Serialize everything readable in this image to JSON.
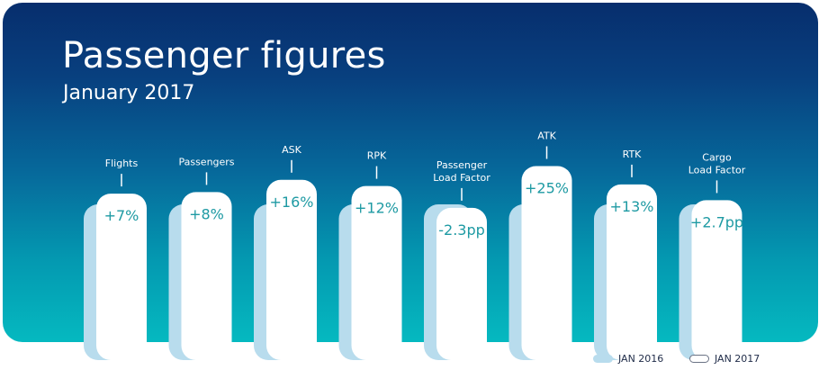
{
  "header": {
    "title": "Passenger figures",
    "subtitle": "January 2017"
  },
  "legend": {
    "jan2016": "JAN 2016",
    "jan2017": "JAN 2017"
  },
  "colors": {
    "bg_top": "#072e6d",
    "bg_bottom": "#05b9c0",
    "bar_2016": "#b8dced",
    "bar_2017": "#ffffff",
    "value_text": "#1e9aa3"
  },
  "chart_data": {
    "type": "bar",
    "series": [
      {
        "name": "JAN 2016"
      },
      {
        "name": "JAN 2017"
      }
    ],
    "categories": [
      {
        "label": [
          "Flights"
        ],
        "change": "+7%",
        "pct": 7
      },
      {
        "label": [
          "Passengers"
        ],
        "change": "+8%",
        "pct": 8
      },
      {
        "label": [
          "ASK"
        ],
        "change": "+16%",
        "pct": 16
      },
      {
        "label": [
          "RPK"
        ],
        "change": "+12%",
        "pct": 12
      },
      {
        "label": [
          "Passenger",
          "Load Factor"
        ],
        "change": "-2.3pp",
        "pct": -2.3
      },
      {
        "label": [
          "ATK"
        ],
        "change": "+25%",
        "pct": 25
      },
      {
        "label": [
          "RTK"
        ],
        "change": "+13%",
        "pct": 13
      },
      {
        "label": [
          "Cargo",
          "Load Factor"
        ],
        "change": "+2.7pp",
        "pct": 2.7
      }
    ]
  }
}
